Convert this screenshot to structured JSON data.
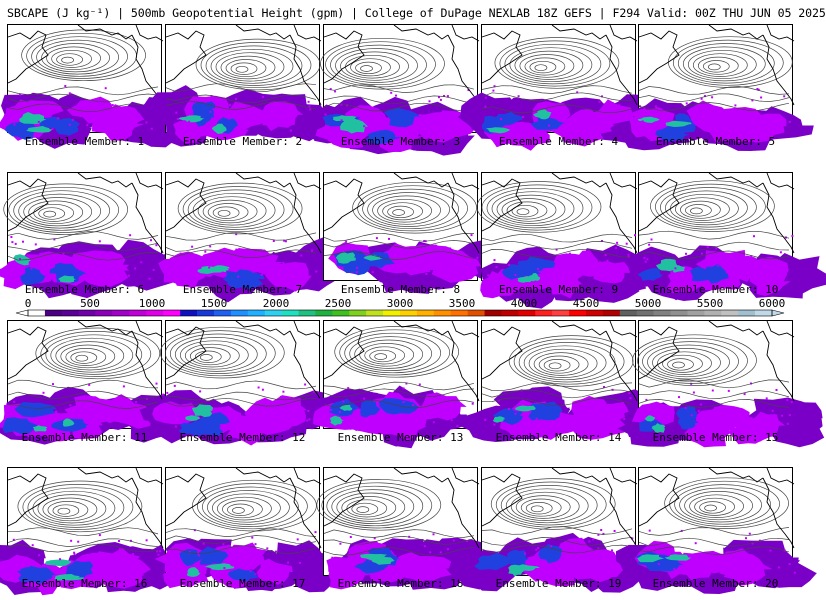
{
  "header": {
    "title": "SBCAPE (J kg⁻¹) | 500mb Geopotential Height (gpm) | College of DuPage NEXLAB 18Z GEFS | F294 Valid: 00Z THU JUN 05 2025"
  },
  "members": [
    "Ensemble Member: 1",
    "Ensemble Member: 2",
    "Ensemble Member: 3",
    "Ensemble Member: 4",
    "Ensemble Member: 5",
    "Ensemble Member: 6",
    "Ensemble Member: 7",
    "Ensemble Member: 8",
    "Ensemble Member: 9",
    "Ensemble Member: 10",
    "Ensemble Member: 11",
    "Ensemble Member: 12",
    "Ensemble Member: 13",
    "Ensemble Member: 14",
    "Ensemble Member: 15",
    "Ensemble Member: 16",
    "Ensemble Member: 17",
    "Ensemble Member: 18",
    "Ensemble Member: 19",
    "Ensemble Member: 20"
  ],
  "colorbar": {
    "ticks": [
      "0",
      "500",
      "1000",
      "1500",
      "2000",
      "2500",
      "3000",
      "3500",
      "4000",
      "4500",
      "5000",
      "5500",
      "6000"
    ],
    "colors": [
      "#ffffff",
      "#4b0082",
      "#5a0096",
      "#7000a8",
      "#8a00b8",
      "#a000c8",
      "#c000d8",
      "#e000e8",
      "#ff00ff",
      "#1010c0",
      "#1838d8",
      "#2060f0",
      "#1e90ff",
      "#20b0ff",
      "#30d0f0",
      "#20e0c0",
      "#20c080",
      "#20b040",
      "#40c020",
      "#80d020",
      "#c0e020",
      "#f0f000",
      "#ffd000",
      "#ffb000",
      "#ff9000",
      "#ff7000",
      "#e05000",
      "#a00000",
      "#c00000",
      "#e00000",
      "#ff2020",
      "#ff4040",
      "#ff0000",
      "#d00000",
      "#b00000",
      "#606060",
      "#707070",
      "#808080",
      "#909090",
      "#a0a0a0",
      "#b0b0b0",
      "#c0c0c0",
      "#a0c0d0",
      "#c0d8e8"
    ]
  },
  "style": {
    "cape_low": "#7a00c8",
    "cape_mid": "#c000ff",
    "cape_high": "#2040e0",
    "cape_peak": "#20c0a0",
    "contour": "#444444",
    "coast": "#000000"
  }
}
